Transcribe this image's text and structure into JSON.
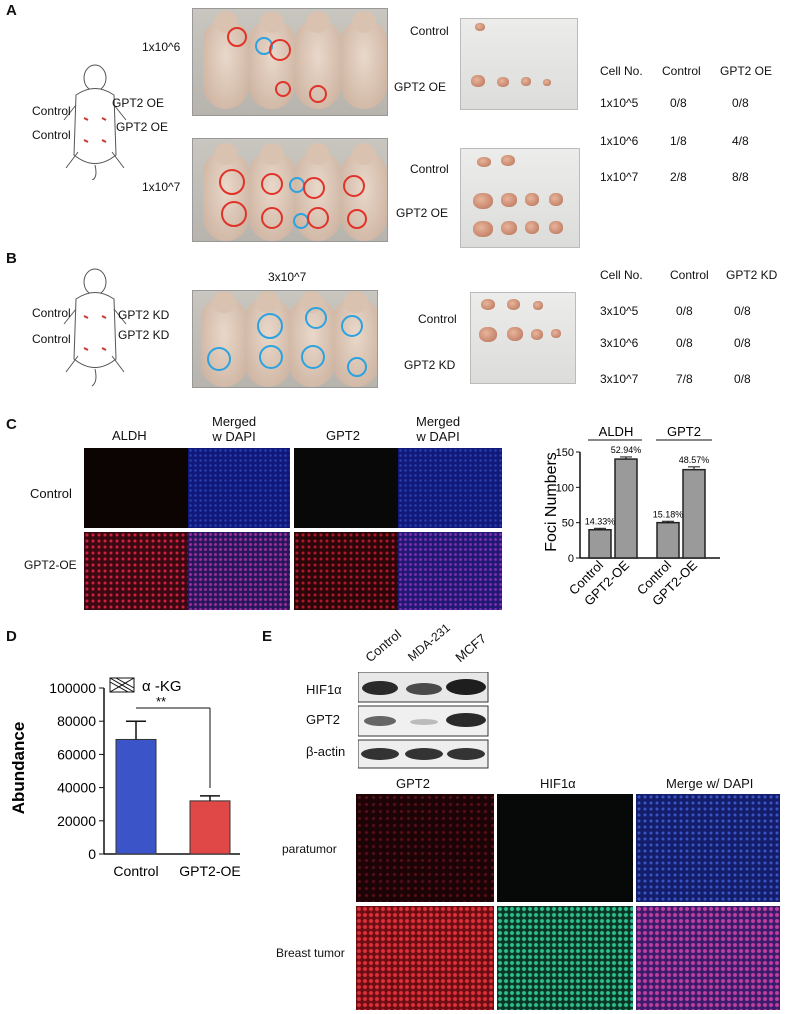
{
  "panels": {
    "A": {
      "label": "A",
      "sketch_left": [
        "Control",
        "Control"
      ],
      "sketch_right": [
        "GPT2 OE",
        "GPT2 OE"
      ],
      "row1_dose": "1x10^6",
      "row2_dose": "1x10^7",
      "tumor_labels_top": [
        "Control",
        "GPT2 OE"
      ],
      "tumor_labels_bottom": [
        "Control",
        "GPT2 OE"
      ],
      "table": {
        "headers": [
          "Cell No.",
          "Control",
          "GPT2 OE"
        ],
        "rows": [
          [
            "1x10^5",
            "0/8",
            "0/8"
          ],
          [
            "1x10^6",
            "1/8",
            "4/8"
          ],
          [
            "1x10^7",
            "2/8",
            "8/8"
          ]
        ]
      }
    },
    "B": {
      "label": "B",
      "sketch_left": [
        "Control",
        "Control"
      ],
      "sketch_right": [
        "GPT2 KD",
        "GPT2 KD"
      ],
      "dose": "3x10^7",
      "tumor_labels": [
        "Control",
        "GPT2 KD"
      ],
      "table": {
        "headers": [
          "Cell No.",
          "Control",
          "GPT2 KD"
        ],
        "rows": [
          [
            "3x10^5",
            "0/8",
            "0/8"
          ],
          [
            "3x10^6",
            "0/8",
            "0/8"
          ],
          [
            "3x10^7",
            "7/8",
            "0/8"
          ]
        ]
      }
    },
    "C": {
      "label": "C",
      "col_headers": [
        "ALDH",
        "Merged\nw DAPI",
        "GPT2",
        "Merged\nw DAPI"
      ],
      "row_labels": [
        "Control",
        "GPT2-OE"
      ]
    },
    "D": {
      "label": "D"
    },
    "E": {
      "label": "E",
      "blot_lanes": [
        "Control",
        "MDA-231",
        "MCF7"
      ],
      "blot_rows": [
        "HIF1α",
        "GPT2",
        "β-actin"
      ],
      "if_headers": [
        "GPT2",
        "HIF1α",
        "Merge w/ DAPI"
      ],
      "if_rows": [
        "paratumor",
        "Breast tumor"
      ]
    }
  },
  "chart_data": [
    {
      "type": "bar",
      "panel": "C",
      "group_labels": [
        "ALDH",
        "GPT2"
      ],
      "categories": [
        "Control",
        "GPT2-OE",
        "Control",
        "GPT2-OE"
      ],
      "values": [
        40,
        140,
        50,
        125
      ],
      "errors": [
        2,
        3,
        2,
        4
      ],
      "data_labels": [
        "14.33%",
        "52.94%",
        "15.18%",
        "48.57%"
      ],
      "ylabel": "Foci Numbers",
      "ylim": [
        0,
        150
      ],
      "yticks": [
        "0",
        "50",
        "100",
        "150"
      ],
      "colors": {
        "bar": "#9a9a9a",
        "edge": "#222222"
      }
    },
    {
      "type": "bar",
      "panel": "D",
      "categories": [
        "Control",
        "GPT2-OE"
      ],
      "values": [
        69000,
        32000
      ],
      "errors": [
        11000,
        3000
      ],
      "legend": "α -KG",
      "significance": "**",
      "ylabel": "Abundance",
      "ylim": [
        0,
        100000
      ],
      "yticks": [
        "0",
        "20000",
        "40000",
        "60000",
        "80000",
        "100000"
      ],
      "colors": {
        "control": "#3b55c9",
        "oe": "#e04848"
      }
    }
  ]
}
